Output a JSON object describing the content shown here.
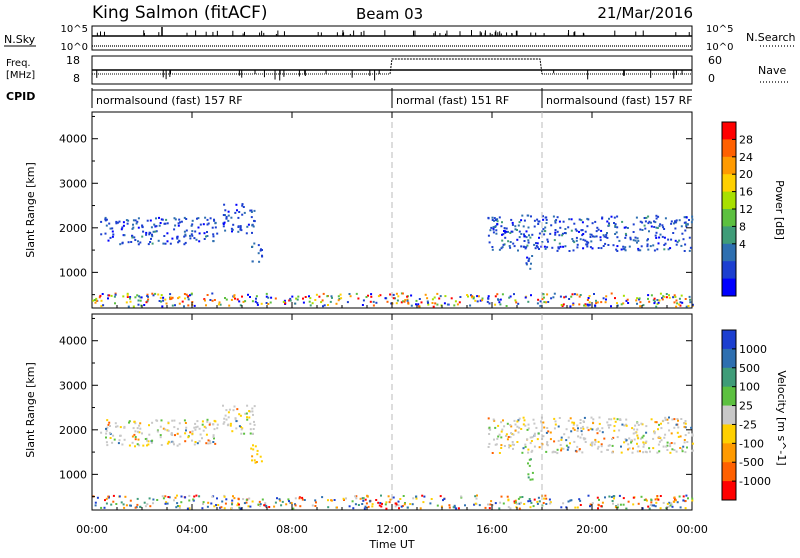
{
  "header": {
    "station": "King Salmon (fitACF)",
    "beam": "Beam 03",
    "date": "21/Mar/2016"
  },
  "aux_panels": {
    "nsky_label": "N.Sky",
    "nsearch_label": "N.Search",
    "nsky_ticks": [
      "10^5",
      "10^0"
    ],
    "nsearch_ticks": [
      "10^5",
      "10^0"
    ],
    "freq_label_line1": "Freq.",
    "freq_label_line2": "[MHz]",
    "freq_ticks": [
      "18",
      "8"
    ],
    "nave_label": "Nave",
    "nave_ticks": [
      "60",
      "0"
    ],
    "cpid_label": "CPID",
    "cpid_segments": [
      {
        "label": "normalsound (fast) 157 RF",
        "start": 0,
        "end": 12
      },
      {
        "label": "normal (fast) 151 RF",
        "start": 12,
        "end": 18
      },
      {
        "label": "normalsound (fast) 157 RF",
        "start": 18,
        "end": 24
      }
    ]
  },
  "x_axis": {
    "label": "Time UT",
    "ticks": [
      "00:00",
      "04:00",
      "08:00",
      "12:00",
      "16:00",
      "20:00",
      "00:00"
    ],
    "tick_hours": [
      0,
      4,
      8,
      12,
      16,
      20,
      24
    ],
    "dashed_lines_hours": [
      12,
      18
    ]
  },
  "chart_data": [
    {
      "type": "heatmap",
      "name": "power",
      "ylabel": "Slant Range [km]",
      "yticks": [
        1000,
        2000,
        3000,
        4000
      ],
      "ylim": [
        200,
        4600
      ],
      "xlim": [
        0,
        24
      ],
      "colorbar": {
        "label": "Power [dB]",
        "ticks": [
          "28",
          "24",
          "20",
          "16",
          "12",
          "8",
          "4"
        ],
        "colors": [
          "#ff0000",
          "#ff6000",
          "#ff9a00",
          "#ffd000",
          "#a8e000",
          "#5cc040",
          "#3f9c78",
          "#2e6fb0",
          "#1c3fd0",
          "#0000ff"
        ]
      },
      "echo_regions": [
        {
          "t0": 0.3,
          "t1": 5.0,
          "r0": 1650,
          "r1": 2250,
          "level": "low"
        },
        {
          "t0": 5.2,
          "t1": 6.5,
          "r0": 1900,
          "r1": 2600,
          "level": "low"
        },
        {
          "t0": 6.3,
          "t1": 6.8,
          "r0": 1250,
          "r1": 1700,
          "level": "low"
        },
        {
          "t0": 15.8,
          "t1": 24.0,
          "r0": 1500,
          "r1": 2300,
          "level": "low"
        },
        {
          "t0": 17.3,
          "t1": 17.6,
          "r0": 900,
          "r1": 1450,
          "level": "low"
        },
        {
          "t0": 0.0,
          "t1": 24.0,
          "r0": 250,
          "r1": 550,
          "level": "mixed"
        }
      ]
    },
    {
      "type": "heatmap",
      "name": "velocity",
      "ylabel": "Slant Range [km]",
      "yticks": [
        1000,
        2000,
        3000,
        4000
      ],
      "ylim": [
        200,
        4600
      ],
      "xlim": [
        0,
        24
      ],
      "colorbar": {
        "label": "Velocity [m s^-1]",
        "ticks": [
          "1000",
          "500",
          "100",
          "25",
          "-25",
          "-100",
          "-500",
          "-1000"
        ],
        "colors": [
          "#1c3fd0",
          "#2e6fb0",
          "#3f9c78",
          "#5cc040",
          "#c8c8c8",
          "#ffd000",
          "#ff9a00",
          "#ff6000",
          "#ff0000"
        ]
      },
      "echo_regions": [
        {
          "t0": 0.3,
          "t1": 5.0,
          "r0": 1650,
          "r1": 2250,
          "level": "low"
        },
        {
          "t0": 5.2,
          "t1": 6.5,
          "r0": 1900,
          "r1": 2600,
          "level": "low"
        },
        {
          "t0": 6.3,
          "t1": 6.8,
          "r0": 1250,
          "r1": 1700,
          "level": "neg"
        },
        {
          "t0": 15.8,
          "t1": 24.0,
          "r0": 1500,
          "r1": 2300,
          "level": "low"
        },
        {
          "t0": 17.3,
          "t1": 17.6,
          "r0": 900,
          "r1": 1450,
          "level": "pos"
        },
        {
          "t0": 0.0,
          "t1": 24.0,
          "r0": 250,
          "r1": 550,
          "level": "mixed"
        }
      ]
    }
  ]
}
